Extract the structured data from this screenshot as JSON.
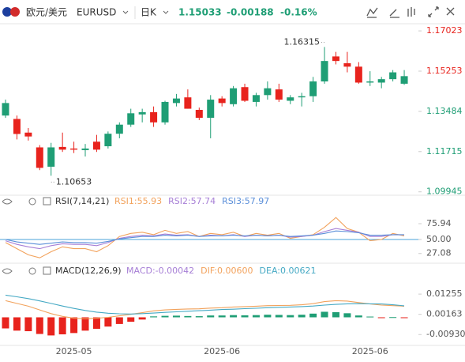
{
  "header": {
    "symbol": "欧元/美元",
    "code": "EURUSD",
    "period": "日K",
    "price": "1.15033",
    "change": "-0.00188",
    "change_pct": "-0.16%"
  },
  "chart_data": [
    {
      "type": "candlestick",
      "categories": [
        null,
        null,
        null,
        null,
        null,
        null,
        "2025-05",
        null,
        null,
        null,
        null,
        null,
        null,
        null,
        null,
        null,
        null,
        null,
        null,
        "2025-06",
        null,
        null,
        null,
        null,
        null,
        null,
        null,
        null,
        null,
        null,
        null,
        null,
        "2025-06",
        null,
        null,
        null
      ],
      "open": [
        1.133,
        1.1315,
        1.1255,
        1.119,
        1.1105,
        1.1192,
        1.1185,
        1.1178,
        1.1215,
        1.1195,
        1.125,
        1.129,
        1.1335,
        1.1345,
        1.13,
        1.1385,
        1.141,
        1.1355,
        1.132,
        1.1405,
        1.138,
        1.1455,
        1.139,
        1.142,
        1.1445,
        1.1395,
        1.141,
        1.1415,
        1.148,
        1.159,
        1.156,
        1.1545,
        1.1475,
        1.1475,
        1.149,
        1.147
      ],
      "high": [
        1.14,
        1.133,
        1.1275,
        1.12,
        1.121,
        1.1255,
        1.1215,
        1.1205,
        1.1245,
        1.126,
        1.13,
        1.136,
        1.136,
        1.137,
        1.1395,
        1.1425,
        1.1445,
        1.1365,
        1.142,
        1.1415,
        1.146,
        1.147,
        1.143,
        1.148,
        1.147,
        1.142,
        1.143,
        1.15,
        1.16315,
        1.161,
        1.161,
        1.1565,
        1.1525,
        1.15,
        1.153,
        1.153
      ],
      "low": [
        1.132,
        1.1225,
        1.122,
        1.109,
        1.10653,
        1.117,
        1.1165,
        1.115,
        1.117,
        1.1185,
        1.123,
        1.128,
        1.13,
        1.128,
        1.129,
        1.137,
        1.136,
        1.131,
        1.123,
        1.137,
        1.137,
        1.139,
        1.137,
        1.14,
        1.139,
        1.138,
        1.137,
        1.139,
        1.147,
        1.1555,
        1.152,
        1.147,
        1.146,
        1.145,
        1.148,
        1.1465
      ],
      "close": [
        1.1385,
        1.1249,
        1.1238,
        1.11,
        1.119,
        1.118,
        1.118,
        1.1185,
        1.118,
        1.125,
        1.129,
        1.134,
        1.1345,
        1.13,
        1.139,
        1.1405,
        1.136,
        1.132,
        1.14,
        1.1385,
        1.145,
        1.1395,
        1.142,
        1.145,
        1.14,
        1.141,
        1.1415,
        1.148,
        1.157,
        1.157,
        1.1545,
        1.1475,
        1.148,
        1.149,
        1.152,
        1.15033
      ],
      "up_color": "#1f9e75",
      "down_color": "#e8231d",
      "annotations": [
        "1.16315",
        "1.10653"
      ],
      "ylim": [
        1.099,
        1.172
      ],
      "yticks": [
        1.09945,
        1.11715,
        1.13484,
        1.15253,
        1.17023
      ]
    },
    {
      "type": "line",
      "title": "RSI(7,14,21)",
      "series": [
        {
          "name": "RSI1:55.93",
          "color": "#f2a25c",
          "values": [
            45,
            35,
            25,
            20,
            30,
            38,
            35,
            35,
            30,
            40,
            55,
            60,
            62,
            58,
            65,
            60,
            63,
            55,
            60,
            58,
            62,
            55,
            60,
            57,
            60,
            52,
            55,
            58,
            70,
            86,
            68,
            62,
            48,
            50,
            60,
            55.93
          ]
        },
        {
          "name": "RSI2:57.74",
          "color": "#a77fd6",
          "values": [
            48,
            42,
            38,
            35,
            40,
            43,
            42,
            42,
            40,
            45,
            52,
            55,
            57,
            56,
            59,
            57,
            58,
            55,
            57,
            56,
            58,
            55,
            57,
            56,
            57,
            54,
            55,
            57,
            63,
            68,
            65,
            62,
            55,
            55,
            58,
            57.74
          ]
        },
        {
          "name": "RSI3:57.97",
          "color": "#5b8fd9",
          "values": [
            50,
            46,
            44,
            42,
            44,
            46,
            45,
            45,
            44,
            47,
            51,
            53,
            55,
            55,
            57,
            56,
            57,
            55,
            56,
            56,
            57,
            56,
            57,
            56,
            57,
            55,
            56,
            57,
            60,
            64,
            63,
            61,
            57,
            57,
            58,
            57.97
          ]
        }
      ],
      "ylim": [
        15.1,
        103.1
      ],
      "yticks": [
        27.08,
        {
          "value": 50,
          "label": "50.00"
        },
        75.94
      ]
    },
    {
      "type": "macd",
      "title": "MACD(12,26,9)",
      "series": [
        {
          "name": "MACD:-0.00042",
          "color": "#a77fd6",
          "values": [
            -0.006,
            -0.0072,
            -0.0075,
            -0.009,
            -0.0098,
            -0.0092,
            -0.0085,
            -0.0072,
            -0.0062,
            -0.005,
            -0.0036,
            -0.0024,
            -0.0012,
            0.0005,
            0.0008,
            0.0009,
            0.0007,
            0.0006,
            0.001,
            0.001,
            0.0012,
            0.0011,
            0.0012,
            0.0014,
            0.0013,
            0.0012,
            0.0014,
            0.002,
            0.003,
            0.0028,
            0.0022,
            0.001,
            0.0004,
            -0.0002,
            0.0001,
            -0.00042
          ]
        },
        {
          "name": "DIF:0.00600",
          "color": "#f2a25c",
          "values": [
            0.009,
            0.0075,
            0.006,
            0.004,
            0.002,
            0.0005,
            -0.0005,
            -0.0008,
            -0.0005,
            0.0,
            0.0008,
            0.0016,
            0.0025,
            0.0035,
            0.004,
            0.0043,
            0.0045,
            0.0046,
            0.005,
            0.0052,
            0.0056,
            0.0058,
            0.006,
            0.0063,
            0.0064,
            0.0065,
            0.0068,
            0.0074,
            0.0085,
            0.009,
            0.0088,
            0.008,
            0.0072,
            0.0066,
            0.0063,
            0.006
          ]
        },
        {
          "name": "DEA:0.00621",
          "color": "#45a9c4",
          "values": [
            0.012,
            0.0111,
            0.0101,
            0.0089,
            0.0075,
            0.0061,
            0.0048,
            0.0037,
            0.0028,
            0.0022,
            0.0019,
            0.0018,
            0.002,
            0.0023,
            0.0027,
            0.003,
            0.0033,
            0.0036,
            0.0039,
            0.0042,
            0.0044,
            0.0047,
            0.0049,
            0.0052,
            0.0054,
            0.0056,
            0.0058,
            0.0061,
            0.0066,
            0.007,
            0.0073,
            0.0074,
            0.0073,
            0.0072,
            0.0068,
            0.00621
          ]
        }
      ],
      "up_color": "#1f9e75",
      "down_color": "#e8231d",
      "ylim": [
        -0.0139,
        0.022
      ],
      "yticks": [
        {
          "value": -0.0093,
          "label": "-0.00930"
        },
        0.00163,
        0.01255
      ]
    }
  ]
}
